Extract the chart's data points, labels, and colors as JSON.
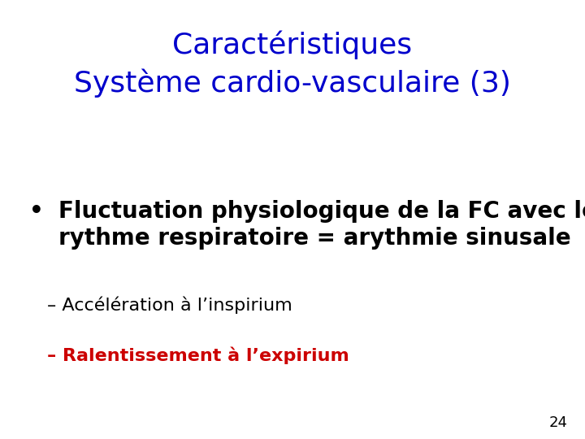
{
  "title_line1": "Caractéristiques",
  "title_line2": "Système cardio-vasculaire (3)",
  "title_color": "#0000CC",
  "title_fontsize": 26,
  "title_fontweight": "normal",
  "bullet_text_line1": "Fluctuation physiologique de la FC avec le",
  "bullet_text_line2": "rythme respiratoire = arythmie sinusale",
  "bullet_color": "#000000",
  "bullet_fontsize": 20,
  "bullet_fontweight": "bold",
  "sub1_text": "– Accélération à l’inspirium",
  "sub1_color": "#000000",
  "sub1_fontsize": 16,
  "sub1_fontweight": "normal",
  "sub2_text": "– Ralentissement à l’expirium",
  "sub2_color": "#CC0000",
  "sub2_fontsize": 16,
  "sub2_fontweight": "bold",
  "page_number": "24",
  "page_color": "#000000",
  "page_fontsize": 13,
  "background_color": "#ffffff"
}
